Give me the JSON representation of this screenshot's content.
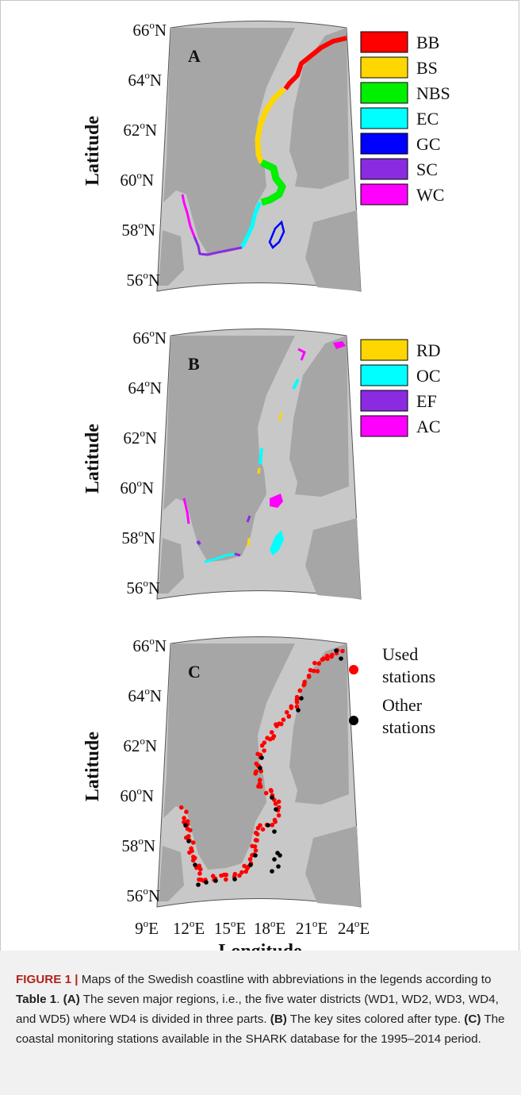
{
  "panels": [
    {
      "letter": "A",
      "lat_ticks": [
        "66",
        "64",
        "62",
        "60",
        "58",
        "56"
      ],
      "ylabel": "Latitude",
      "legend": [
        {
          "label": "BB",
          "color": "#ff0000"
        },
        {
          "label": "BS",
          "color": "#ffd700"
        },
        {
          "label": "NBS",
          "color": "#00f000"
        },
        {
          "label": "EC",
          "color": "#00ffff"
        },
        {
          "label": "GC",
          "color": "#0000ff"
        },
        {
          "label": "SC",
          "color": "#8a2be2"
        },
        {
          "label": "WC",
          "color": "#ff00ff"
        }
      ]
    },
    {
      "letter": "B",
      "lat_ticks": [
        "66",
        "64",
        "62",
        "60",
        "58",
        "56"
      ],
      "ylabel": "Latitude",
      "legend": [
        {
          "label": "RD",
          "color": "#ffd700"
        },
        {
          "label": "OC",
          "color": "#00ffff"
        },
        {
          "label": "EF",
          "color": "#8a2be2"
        },
        {
          "label": "AC",
          "color": "#ff00ff"
        }
      ]
    },
    {
      "letter": "C",
      "lat_ticks": [
        "66",
        "64",
        "62",
        "60",
        "58",
        "56"
      ],
      "ylabel": "Latitude",
      "lon_ticks": [
        "9",
        "12",
        "15",
        "18",
        "21",
        "24"
      ],
      "xlabel": "Longitude",
      "legend": [
        {
          "label": "Used stations",
          "lines": [
            "Used",
            "stations"
          ],
          "color": "#ff0000"
        },
        {
          "label": "Other stations",
          "lines": [
            "Other",
            "stations"
          ],
          "color": "#000000"
        }
      ]
    }
  ],
  "units": {
    "lat": "N",
    "lon": "E",
    "deg": "o"
  },
  "colors": {
    "ocean": "#c8c8c8",
    "land": "#a6a6a6",
    "frame": "#555555"
  },
  "caption": {
    "title": "FIGURE 1 |",
    "intro": " Maps of the Swedish coastline with abbreviations in the legends according to ",
    "table_ref": "Table 1",
    "after_table": ". ",
    "a_label": "(A)",
    "a_text": " The seven major regions, i.e., the five water districts (WD1, WD2, WD3, WD4, and WD5) where WD4 is divided in three parts. ",
    "b_label": "(B)",
    "b_text": " The key sites colored after type. ",
    "c_label": "(C)",
    "c_text": " The coastal monitoring stations available in the SHARK database for the 1995–2014 period."
  }
}
